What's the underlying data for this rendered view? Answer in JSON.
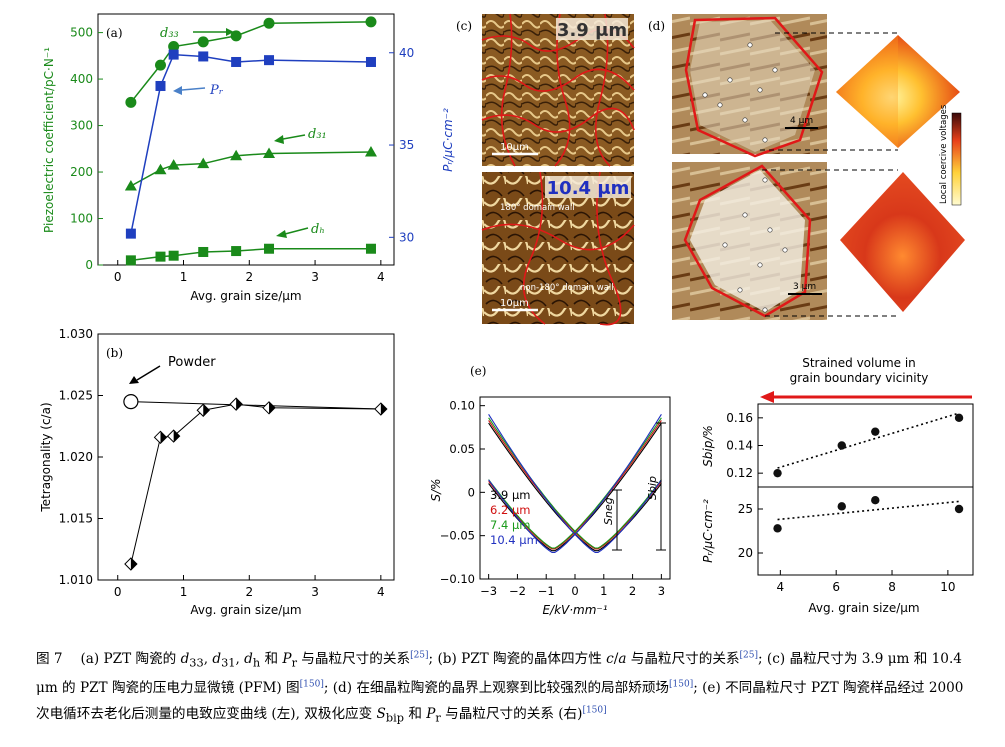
{
  "panel_a": {
    "label": "(a)",
    "ylabel_left": "Piezoelectric coefficient/pC·N⁻¹",
    "ylabel_right": "Pᵣ/μC·cm⁻²",
    "xlabel": "Avg. grain size/μm",
    "left_ticks": [
      "0",
      "100",
      "200",
      "300",
      "400",
      "500"
    ],
    "right_ticks": [
      "30",
      "35",
      "40"
    ],
    "x_ticks": [
      "0",
      "1",
      "2",
      "3",
      "4"
    ],
    "labels": {
      "d33": "d₃₃",
      "Pr": "Pᵣ",
      "d31": "d₃₁",
      "dh": "dₕ"
    },
    "colors": {
      "green": "#1a8a1a",
      "blue": "#1f3fbf"
    }
  },
  "panel_b": {
    "label": "(b)",
    "ylabel": "Tetragonality (c/a)",
    "xlabel": "Avg. grain size/μm",
    "y_ticks": [
      "1.010",
      "1.015",
      "1.020",
      "1.025",
      "1.030"
    ],
    "x_ticks": [
      "0",
      "1",
      "2",
      "3",
      "4"
    ],
    "powder_label": "Powder"
  },
  "panel_c": {
    "label": "(c)",
    "top_size": "3.9 μm",
    "bottom_size": "10.4 μm",
    "scale": "10μm",
    "scale2": "10μm",
    "wall180": "180° domain wall",
    "wall_non180": "non-180° domain wall"
  },
  "panel_d": {
    "label": "(d)",
    "scale_top": "4 μm",
    "scale_bottom": "3 μm",
    "colorbar_label": "Local coercive voltages"
  },
  "panel_e": {
    "label": "(e)",
    "ylabel": "S/%",
    "xlabel": "E/kV·mm⁻¹",
    "y_ticks": [
      "0.10",
      "0.05",
      "0",
      "−0.05",
      "−0.10"
    ],
    "x_ticks": [
      "−3",
      "−2",
      "−1",
      "0",
      "1",
      "2",
      "3"
    ],
    "legend": [
      {
        "text": "3.9 μm",
        "color": "#000000"
      },
      {
        "text": "6.2 μm",
        "color": "#d01010"
      },
      {
        "text": "7.4  μm",
        "color": "#1a9a1a"
      },
      {
        "text": "10.4 μm",
        "color": "#2030c0"
      }
    ],
    "sneg": "Sneg",
    "sbip": "Sbip",
    "strained_title_1": "Strained volume in",
    "strained_title_2": "grain boundary vicinity",
    "right_ylabel_top": "Sbip/%",
    "right_ylabel_bottom": "Pᵣ/μC·cm⁻²",
    "right_top_ticks": [
      "0.16",
      "0.14",
      "0.12"
    ],
    "right_bottom_ticks": [
      "25",
      "20"
    ],
    "right_x_ticks": [
      "4",
      "6",
      "8",
      "10"
    ],
    "right_xlabel": "Avg. grain size/μm"
  },
  "chart_data": [
    {
      "type": "scatter",
      "panel": "a",
      "xlabel": "Avg. grain size/μm",
      "ylabel": "Piezoelectric coefficient/pC·N⁻¹",
      "xlim": [
        -0.3,
        4.2
      ],
      "ylim": [
        0,
        540
      ],
      "y2lim": [
        28.5,
        42.1
      ],
      "series": [
        {
          "name": "d33",
          "x": [
            0.2,
            0.65,
            0.85,
            1.3,
            1.8,
            2.3,
            3.85
          ],
          "y": [
            350,
            430,
            470,
            480,
            493,
            520,
            523
          ]
        },
        {
          "name": "d31",
          "x": [
            0.2,
            0.65,
            0.85,
            1.3,
            1.8,
            2.3,
            3.85
          ],
          "y": [
            170,
            205,
            215,
            218,
            235,
            240,
            243
          ]
        },
        {
          "name": "dh",
          "x": [
            0.2,
            0.65,
            0.85,
            1.3,
            1.8,
            2.3,
            3.85
          ],
          "y": [
            10,
            18,
            20,
            28,
            30,
            35,
            35
          ]
        },
        {
          "name": "Pr",
          "axis": "right",
          "x": [
            0.2,
            0.65,
            0.85,
            1.3,
            1.8,
            2.3,
            3.85
          ],
          "y": [
            30.2,
            38.2,
            39.9,
            39.8,
            39.5,
            39.6,
            39.5
          ]
        }
      ]
    },
    {
      "type": "scatter",
      "panel": "b",
      "xlabel": "Avg. grain size/μm",
      "ylabel": "Tetragonality (c/a)",
      "xlim": [
        -0.3,
        4.2
      ],
      "ylim": [
        1.01,
        1.03
      ],
      "series": [
        {
          "name": "ceramic",
          "x": [
            0.2,
            0.65,
            0.85,
            1.3,
            1.8,
            2.3,
            4.0
          ],
          "y": [
            1.0113,
            1.0216,
            1.0217,
            1.0238,
            1.0243,
            1.024,
            1.0239
          ]
        },
        {
          "name": "Powder",
          "x": [
            0.2
          ],
          "y": [
            1.0245
          ]
        }
      ]
    },
    {
      "type": "line",
      "panel": "e-left",
      "xlabel": "E/kV·mm⁻¹",
      "ylabel": "S/%",
      "xlim": [
        -3.3,
        3.3
      ],
      "ylim": [
        -0.1,
        0.11
      ],
      "series": [
        {
          "name": "3.9 μm",
          "smax": 0.08,
          "smin": -0.068
        },
        {
          "name": "6.2 μm",
          "smax": 0.083,
          "smin": -0.066
        },
        {
          "name": "7.4  μm",
          "smax": 0.086,
          "smin": -0.065
        },
        {
          "name": "10.4 μm",
          "smax": 0.09,
          "smin": -0.07
        }
      ]
    },
    {
      "type": "scatter",
      "panel": "e-right",
      "xlabel": "Avg. grain size/μm",
      "xlim": [
        3.2,
        10.9
      ],
      "series": [
        {
          "name": "Sbip",
          "x": [
            3.9,
            6.2,
            7.4,
            10.4
          ],
          "y": [
            0.12,
            0.14,
            0.15,
            0.16
          ]
        },
        {
          "name": "Pr",
          "x": [
            3.9,
            6.2,
            7.4,
            10.4
          ],
          "y": [
            22.8,
            25.3,
            26.0,
            25.0
          ]
        }
      ],
      "top_ylim": [
        0.11,
        0.17
      ],
      "bottom_ylim": [
        17.5,
        27.5
      ]
    }
  ]
}
